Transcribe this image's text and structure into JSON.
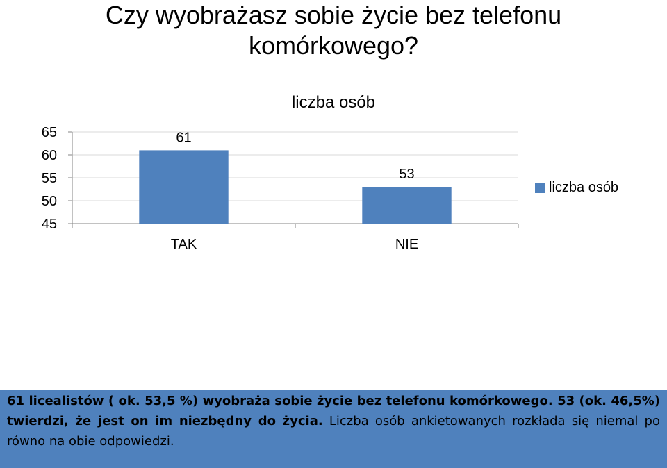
{
  "slide": {
    "title": "Czy wyobrażasz sobie życie bez telefonu komórkowego?"
  },
  "chart_data": {
    "type": "bar",
    "title": "liczba osób",
    "categories": [
      "TAK",
      "NIE"
    ],
    "series": [
      {
        "name": "liczba osób",
        "values": [
          61,
          53
        ]
      }
    ],
    "yticks": [
      45,
      50,
      55,
      60,
      65
    ],
    "ylim": [
      45,
      65
    ],
    "grid": true,
    "legend": "right",
    "color": "#4f81bd"
  },
  "summary": {
    "bold_part": "61 licealistów ( ok. 53,5 %) wyobraża sobie życie bez telefonu komórkowego. 53 (ok. 46,5%) twierdzi, że jest on im niezbędny do życia.",
    "normal_part": " Liczba osób ankietowanych rozkłada się niemal po równo na obie odpowiedzi.",
    "background": "#4f81bd"
  }
}
